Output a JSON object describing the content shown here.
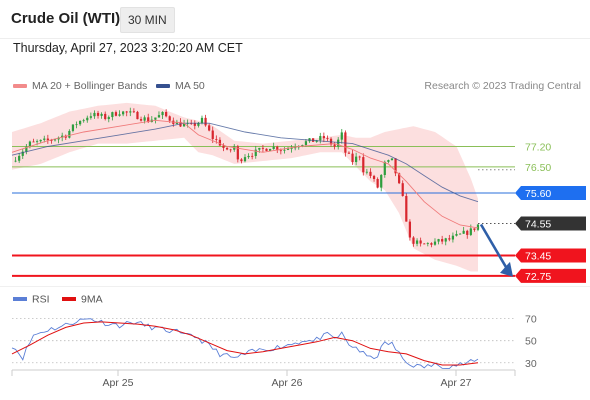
{
  "header": {
    "instrument": "Crude Oil (WTI)",
    "interval": "30 MIN",
    "timestamp": "Thursday, April 27, 2023 3:20:20 AM CET"
  },
  "legend": {
    "ma20_bb": "MA 20 + Bollinger Bands",
    "ma50": "MA 50",
    "credit": "Research © 2023 Trading Central",
    "rsi": "RSI",
    "ma9": "9MA"
  },
  "colors": {
    "candle_up": "#2e9e3e",
    "candle_down": "#d8262e",
    "ma20": "#f07b7b",
    "ma50": "#35508f",
    "bollinger_fill": "#fbd4d4",
    "rsi": "#5b7fd6",
    "rsi_ma": "#e01010",
    "level_green": "#8abf58",
    "level_blue": "#2a6fdb",
    "level_red": "#f0141e",
    "label_blue": "#1e6ff0",
    "label_red": "#f0141e",
    "label_dark": "#333333",
    "arrow": "#2f5fa8"
  },
  "chart_data": [
    {
      "type": "candlestick",
      "title": "Crude Oil (WTI)",
      "interval": "30 MIN",
      "x_ticks": [
        "Apr 25",
        "Apr 26",
        "Apr 27"
      ],
      "ylim": [
        72.4,
        78.8
      ],
      "last_price": 74.55,
      "levels": [
        {
          "value": 77.2,
          "label": "77.20",
          "style": "green"
        },
        {
          "value": 76.5,
          "label": "76.50",
          "style": "green"
        },
        {
          "value": 75.6,
          "label": "75.60",
          "style": "blue"
        },
        {
          "value": 74.55,
          "label": "74.55",
          "style": "dark"
        },
        {
          "value": 73.45,
          "label": "73.45",
          "style": "red"
        },
        {
          "value": 72.75,
          "label": "72.75",
          "style": "red"
        }
      ],
      "forecast_arrow": {
        "from": 74.55,
        "to": 72.75
      },
      "series": [
        {
          "name": "MA 20 + Bollinger Bands"
        },
        {
          "name": "MA 50"
        }
      ],
      "close_path": [
        [
          0,
          76.7
        ],
        [
          5,
          77.3
        ],
        [
          10,
          77.4
        ],
        [
          15,
          77.6
        ],
        [
          18,
          78.0
        ],
        [
          22,
          78.3
        ],
        [
          26,
          78.2
        ],
        [
          30,
          78.4
        ],
        [
          34,
          78.3
        ],
        [
          38,
          78.1
        ],
        [
          42,
          78.3
        ],
        [
          46,
          78.0
        ],
        [
          50,
          77.9
        ],
        [
          53,
          78.1
        ],
        [
          56,
          77.5
        ],
        [
          58,
          77.3
        ],
        [
          60,
          77.0
        ],
        [
          62,
          77.2
        ],
        [
          63,
          76.7
        ],
        [
          65,
          76.9
        ],
        [
          68,
          77.0
        ],
        [
          72,
          77.2
        ],
        [
          76,
          77.1
        ],
        [
          80,
          77.3
        ],
        [
          84,
          77.4
        ],
        [
          87,
          77.5
        ],
        [
          90,
          77.2
        ],
        [
          92,
          77.6
        ],
        [
          93,
          77.0
        ],
        [
          95,
          76.7
        ],
        [
          97,
          76.9
        ],
        [
          98,
          76.4
        ],
        [
          100,
          76.2
        ],
        [
          102,
          75.8
        ],
        [
          104,
          76.6
        ],
        [
          106,
          76.7
        ],
        [
          107,
          76.3
        ],
        [
          109,
          75.4
        ],
        [
          111,
          74.0
        ],
        [
          114,
          73.8
        ],
        [
          118,
          73.9
        ],
        [
          122,
          74.0
        ],
        [
          126,
          74.2
        ],
        [
          128,
          74.3
        ],
        [
          130,
          74.5
        ]
      ],
      "ma20": [
        [
          0,
          77.0
        ],
        [
          10,
          77.4
        ],
        [
          20,
          77.7
        ],
        [
          30,
          77.9
        ],
        [
          40,
          78.1
        ],
        [
          48,
          78.0
        ],
        [
          52,
          77.6
        ],
        [
          60,
          77.2
        ],
        [
          70,
          77.0
        ],
        [
          80,
          77.2
        ],
        [
          90,
          77.3
        ],
        [
          95,
          77.1
        ],
        [
          100,
          76.8
        ],
        [
          105,
          76.6
        ],
        [
          110,
          76.0
        ],
        [
          115,
          75.3
        ],
        [
          120,
          74.8
        ],
        [
          125,
          74.5
        ],
        [
          130,
          74.4
        ]
      ],
      "ma50": [
        [
          0,
          76.9
        ],
        [
          10,
          77.2
        ],
        [
          20,
          77.4
        ],
        [
          30,
          77.6
        ],
        [
          40,
          77.8
        ],
        [
          48,
          78.0
        ],
        [
          55,
          78.0
        ],
        [
          65,
          77.7
        ],
        [
          75,
          77.5
        ],
        [
          85,
          77.4
        ],
        [
          95,
          77.3
        ],
        [
          100,
          77.1
        ],
        [
          105,
          76.9
        ],
        [
          110,
          76.6
        ],
        [
          115,
          76.2
        ],
        [
          120,
          75.8
        ],
        [
          125,
          75.5
        ],
        [
          130,
          75.3
        ]
      ],
      "bb_upper": [
        [
          0,
          77.7
        ],
        [
          8,
          78.0
        ],
        [
          16,
          78.4
        ],
        [
          24,
          78.6
        ],
        [
          32,
          78.7
        ],
        [
          40,
          78.6
        ],
        [
          48,
          78.2
        ],
        [
          55,
          78.0
        ],
        [
          62,
          77.4
        ],
        [
          70,
          77.3
        ],
        [
          78,
          77.4
        ],
        [
          86,
          77.5
        ],
        [
          92,
          77.6
        ],
        [
          96,
          77.5
        ],
        [
          100,
          77.5
        ],
        [
          104,
          77.7
        ],
        [
          108,
          77.8
        ],
        [
          112,
          77.9
        ],
        [
          118,
          77.7
        ],
        [
          124,
          77.2
        ],
        [
          128,
          76.1
        ],
        [
          130,
          75.4
        ]
      ],
      "bb_lower": [
        [
          0,
          76.4
        ],
        [
          8,
          76.6
        ],
        [
          16,
          77.0
        ],
        [
          24,
          77.3
        ],
        [
          32,
          77.3
        ],
        [
          40,
          77.4
        ],
        [
          48,
          77.5
        ],
        [
          52,
          77.0
        ],
        [
          56,
          76.9
        ],
        [
          62,
          76.6
        ],
        [
          70,
          76.7
        ],
        [
          78,
          76.8
        ],
        [
          86,
          77.0
        ],
        [
          92,
          77.0
        ],
        [
          96,
          76.5
        ],
        [
          100,
          76.0
        ],
        [
          104,
          75.7
        ],
        [
          108,
          74.9
        ],
        [
          112,
          73.7
        ],
        [
          118,
          73.3
        ],
        [
          124,
          73.1
        ],
        [
          128,
          72.9
        ],
        [
          130,
          72.9
        ]
      ]
    },
    {
      "type": "line",
      "title": "RSI",
      "y_ticks": [
        30,
        50,
        70
      ],
      "ylim": [
        18,
        76
      ],
      "series": [
        {
          "name": "RSI",
          "values": [
            [
              0,
              46
            ],
            [
              3,
              35
            ],
            [
              6,
              55
            ],
            [
              10,
              60
            ],
            [
              14,
              63
            ],
            [
              18,
              68
            ],
            [
              22,
              70
            ],
            [
              26,
              66
            ],
            [
              30,
              64
            ],
            [
              34,
              67
            ],
            [
              38,
              63
            ],
            [
              42,
              60
            ],
            [
              46,
              58
            ],
            [
              48,
              54
            ],
            [
              50,
              56
            ],
            [
              54,
              48
            ],
            [
              58,
              38
            ],
            [
              62,
              34
            ],
            [
              66,
              39
            ],
            [
              70,
              42
            ],
            [
              74,
              44
            ],
            [
              78,
              47
            ],
            [
              82,
              51
            ],
            [
              84,
              49
            ],
            [
              86,
              53
            ],
            [
              88,
              55
            ],
            [
              90,
              52
            ],
            [
              92,
              56
            ],
            [
              94,
              46
            ],
            [
              96,
              44
            ],
            [
              98,
              38
            ],
            [
              100,
              34
            ],
            [
              102,
              37
            ],
            [
              104,
              48
            ],
            [
              106,
              47
            ],
            [
              108,
              38
            ],
            [
              110,
              30
            ],
            [
              114,
              26
            ],
            [
              118,
              28
            ],
            [
              122,
              27
            ],
            [
              126,
              29
            ],
            [
              130,
              32
            ]
          ]
        },
        {
          "name": "9MA",
          "values": [
            [
              0,
              38
            ],
            [
              5,
              46
            ],
            [
              10,
              55
            ],
            [
              15,
              62
            ],
            [
              20,
              66
            ],
            [
              25,
              67
            ],
            [
              30,
              66
            ],
            [
              35,
              65
            ],
            [
              40,
              63
            ],
            [
              45,
              60
            ],
            [
              50,
              55
            ],
            [
              55,
              48
            ],
            [
              60,
              41
            ],
            [
              65,
              38
            ],
            [
              70,
              40
            ],
            [
              75,
              43
            ],
            [
              80,
              46
            ],
            [
              85,
              49
            ],
            [
              90,
              53
            ],
            [
              95,
              50
            ],
            [
              100,
              43
            ],
            [
              105,
              40
            ],
            [
              110,
              38
            ],
            [
              115,
              32
            ],
            [
              120,
              28
            ],
            [
              125,
              28
            ],
            [
              130,
              30
            ]
          ]
        }
      ]
    }
  ]
}
